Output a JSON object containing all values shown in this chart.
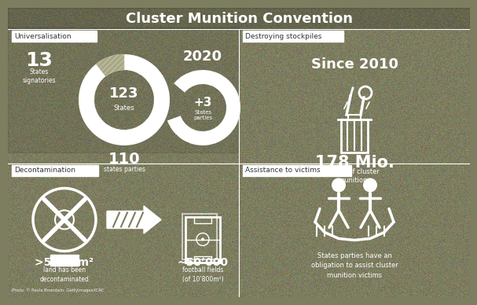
{
  "title": "Cluster Munition Convention",
  "bg_color": "#7d7d60",
  "white": "#ffffff",
  "label_bg": "#ffffff",
  "label_fg": "#333333",
  "sections": {
    "universalisation": {
      "label": "Universalisation",
      "num1": "13",
      "text1": "States\nsignatories",
      "circle1_val": "123",
      "circle1_label": "States",
      "bottom_num": "110",
      "bottom_label": "states parties",
      "year": "2020",
      "circle2_val": "+3",
      "circle2_label": "States\nparties"
    },
    "stockpiles": {
      "label": "Destroying stockpiles",
      "since": "Since 2010",
      "amount": "178 Mio.",
      "unit": "units of cluster\nmunitions"
    },
    "decontamination": {
      "label": "Decontamination",
      "area": ">530 km²",
      "area_sub": "land has been\ndecontaminated",
      "fields": "~50’000",
      "fields_sub": "football fields\n(of 10’800m²)"
    },
    "victims": {
      "label": "Assistance to victims",
      "text": "States parties have an\nobligation to assist cluster\nmunition victims"
    }
  },
  "photo_credit": "Photo: © Paula Bronstein, GettyImages/ICRC",
  "divider_color": "#ffffff",
  "title_fontsize": 13,
  "label_fontsize": 6.5
}
